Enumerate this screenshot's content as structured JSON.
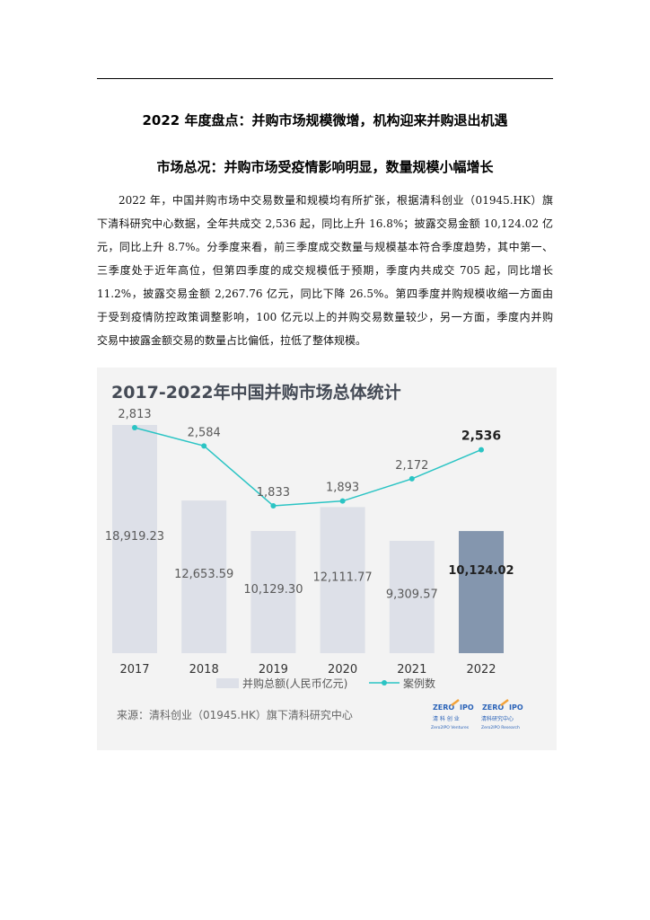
{
  "heading": "2022 年度盘点：并购市场规模微增，机构迎来并购退出机遇",
  "subheading": "市场总况：并购市场受疫情影响明显，数量规模小幅增长",
  "paragraph_lines": [
    "2022 年，中国并购市场中交易数量和规模均有所扩张，根据清科创业（01945.HK）旗",
    "下清科研究中心数据，全年共成交 2,536 起，同比上升 16.8%；披露交易金额 10,124.02 亿",
    "元，同比上升 8.7%。分季度来看，前三季度成交数量与规模基本符合季度趋势，其中第一、",
    "三季度处于近年高位，但第四季度的成交规模低于预期，季度内共成交 705 起，同比增长",
    "11.2%，披露交易金额 2,267.76 亿元，同比下降 26.5%。第四季度并购规模收缩一方面由",
    "于受到疫情防控政策调整影响，100 亿元以上的并购交易数量较少，另一方面，季度内并购",
    "交易中披露金额交易的数量占比偏低，拉低了整体规模。"
  ],
  "figure": {
    "source": "来源：清科创业（01945.HK）旗下清科研究中心",
    "logo_left": {
      "top": "ZERO",
      "ipo": "IPO",
      "cn": "清 科 创 业",
      "en": "Zero2IPO Ventures"
    },
    "logo_right": {
      "top": "ZERO",
      "ipo": "IPO",
      "cn": "清科研究中心",
      "en": "Zero2IPO Research"
    }
  },
  "chart_data": {
    "type": "bar",
    "title": "2017-2022年中国并购市场总体统计",
    "categories": [
      "2017",
      "2018",
      "2019",
      "2020",
      "2021",
      "2022"
    ],
    "series": [
      {
        "name": "并购总额(人民币亿元)",
        "type": "bar",
        "values": [
          18919.23,
          12653.59,
          10129.3,
          12111.77,
          9309.57,
          10124.02
        ],
        "labels": [
          "18,919.23",
          "12,653.59",
          "10,129.30",
          "12,111.77",
          "9,309.57",
          "10,124.02"
        ]
      },
      {
        "name": "案例数",
        "type": "line",
        "values": [
          2813,
          2584,
          1833,
          1893,
          2172,
          2536
        ],
        "labels": [
          "2,813",
          "2,584",
          "1,833",
          "1,893",
          "2,172",
          "2,536"
        ]
      }
    ],
    "highlight_index": 5,
    "colors": {
      "bar": "#dde0e8",
      "bar_highlight": "#8496ae",
      "line": "#2bc4c4",
      "title": "#444a55"
    },
    "legend_position": "bottom",
    "grid": false
  }
}
